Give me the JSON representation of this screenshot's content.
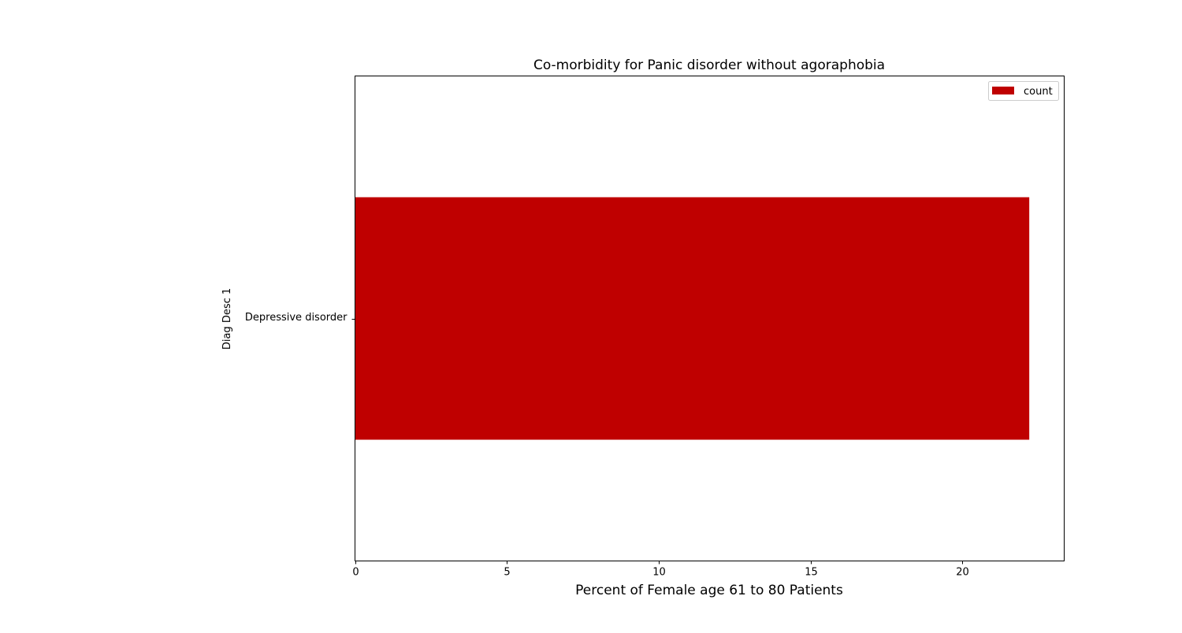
{
  "chart_data": {
    "type": "bar",
    "orientation": "horizontal",
    "title": "Co-morbidity for Panic disorder without agoraphobia",
    "xlabel": "Percent of Female age 61 to 80 Patients",
    "ylabel": "Diag Desc 1",
    "categories": [
      "Depressive disorder"
    ],
    "series": [
      {
        "name": "count",
        "values": [
          22.2
        ],
        "color": "#bf0000"
      }
    ],
    "xlim": [
      0,
      23.35
    ],
    "xticks": [
      0,
      5,
      10,
      15,
      20
    ],
    "grid": false,
    "legend": "top-right"
  }
}
